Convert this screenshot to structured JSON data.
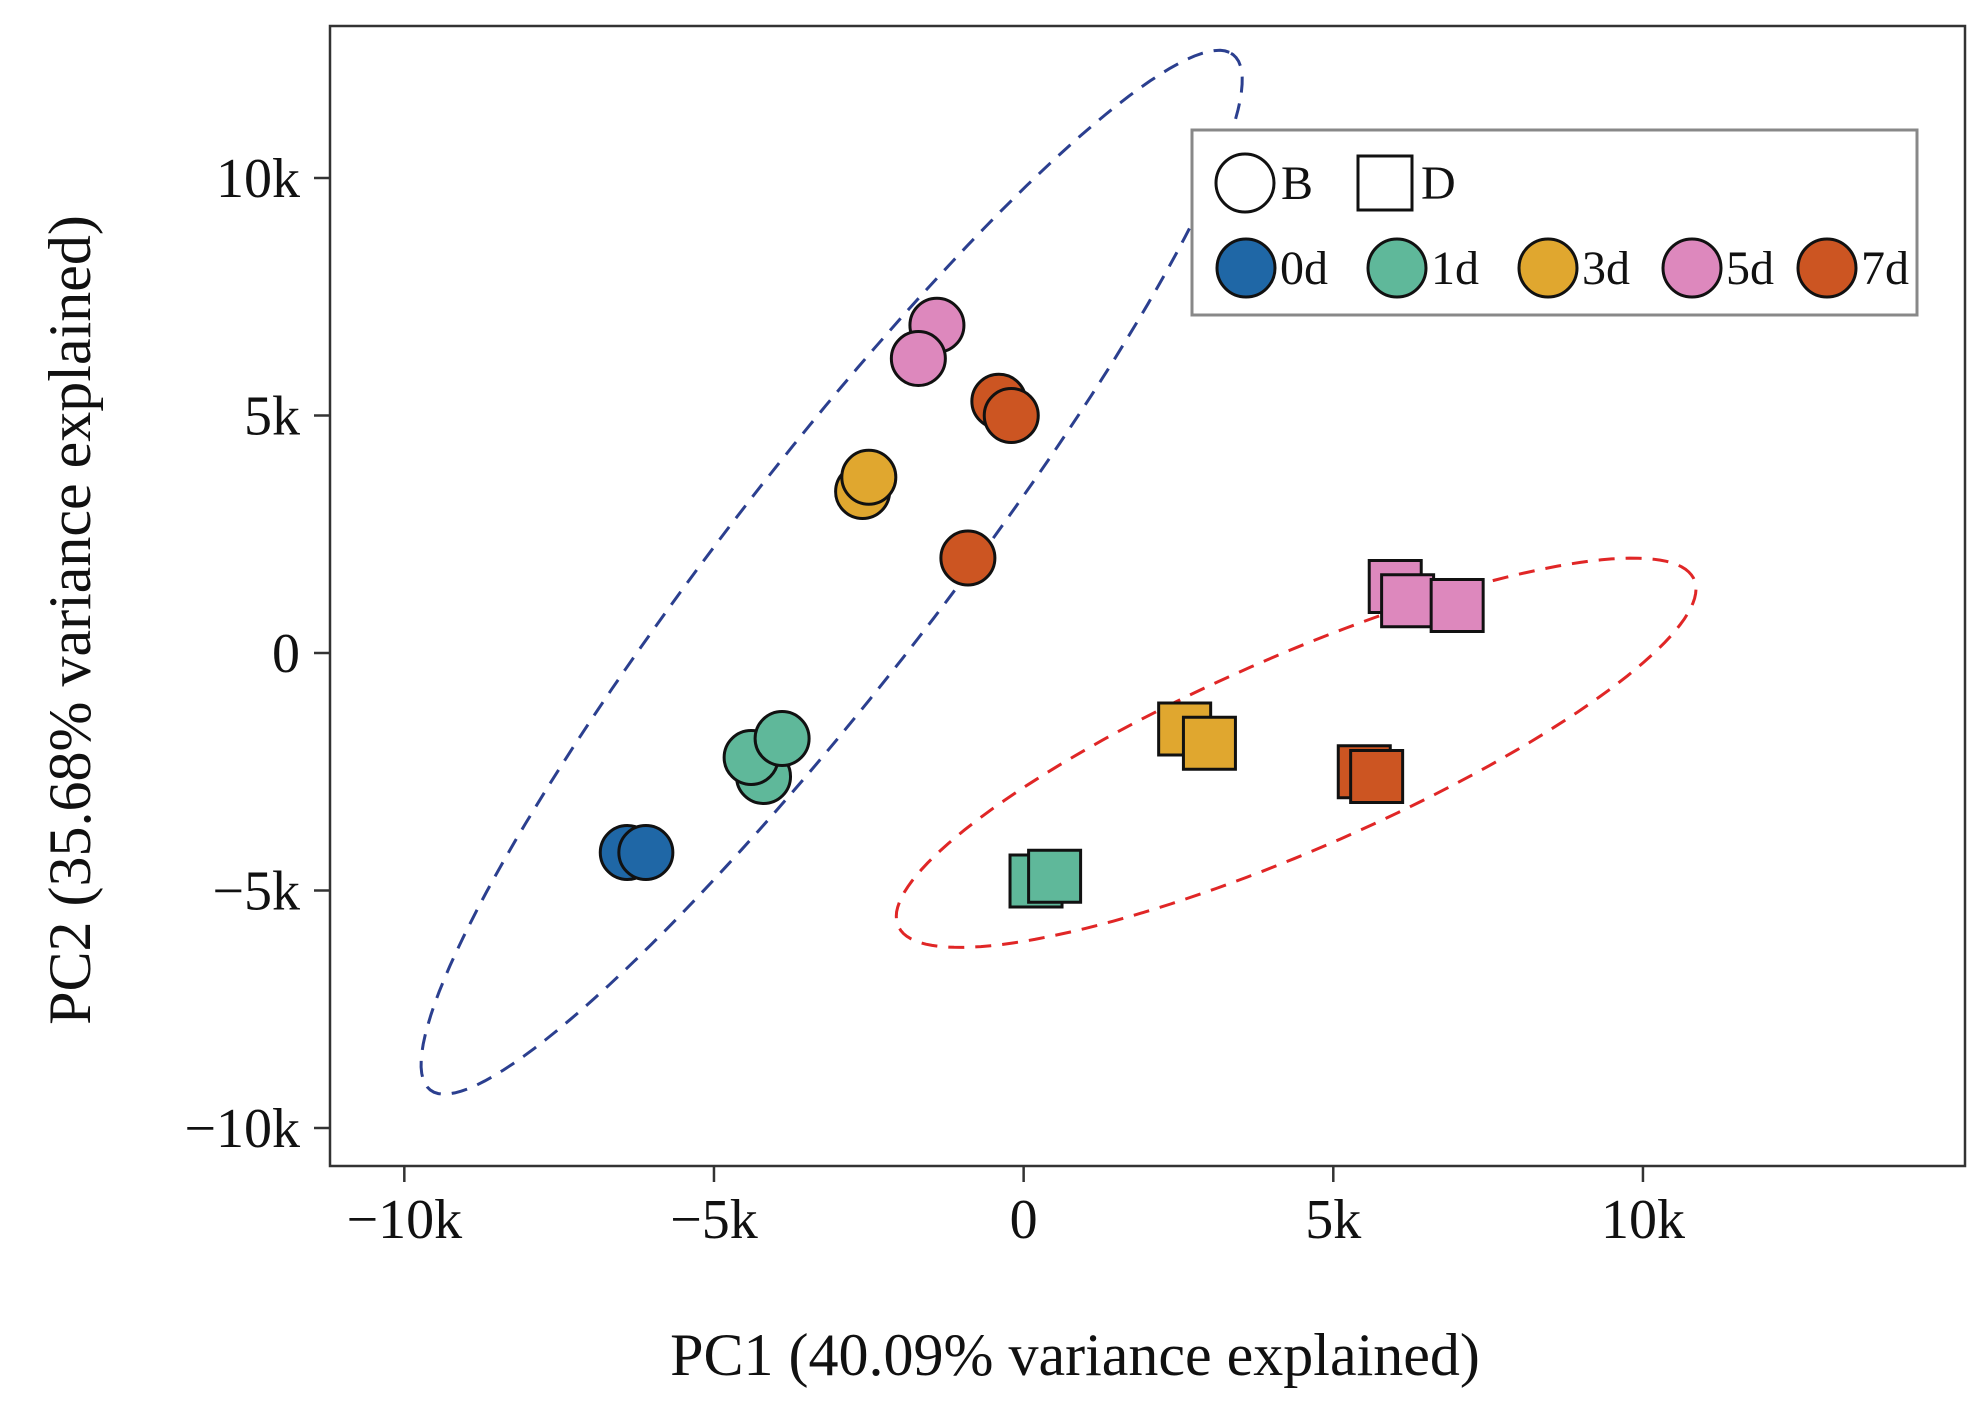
{
  "chart_data": {
    "type": "scatter",
    "xlabel": "PC1 (40.09% variance explained)",
    "ylabel": "PC2 (35.68% variance explained)",
    "xlim": [
      -11200,
      15200
    ],
    "ylim": [
      -10800,
      13200
    ],
    "x_ticks": [
      -10000,
      -5000,
      0,
      5000,
      10000
    ],
    "x_tick_labels": [
      "−10k",
      "−5k",
      "0",
      "5k",
      "10k"
    ],
    "y_ticks": [
      -10000,
      -5000,
      0,
      5000,
      10000
    ],
    "y_tick_labels": [
      "−10k",
      "−5k",
      "0",
      "5k",
      "10k"
    ],
    "grid": false,
    "legend_placement": "top-right",
    "legend": {
      "shapes": [
        {
          "label": "B",
          "shape": "circle"
        },
        {
          "label": "D",
          "shape": "square"
        }
      ],
      "colors": [
        {
          "label": "0d",
          "color": "#1f67a6"
        },
        {
          "label": "1d",
          "color": "#5fb89a"
        },
        {
          "label": "3d",
          "color": "#e0a72f"
        },
        {
          "label": "5d",
          "color": "#dd88bd"
        },
        {
          "label": "7d",
          "color": "#cc5522"
        }
      ]
    },
    "series": [
      {
        "shape": "circle",
        "color": "#1f67a6",
        "points": [
          [
            -6400,
            -4200
          ],
          [
            -6100,
            -4200
          ]
        ]
      },
      {
        "shape": "circle",
        "color": "#5fb89a",
        "points": [
          [
            -4200,
            -2600
          ],
          [
            -4400,
            -2200
          ],
          [
            -3900,
            -1800
          ]
        ]
      },
      {
        "shape": "circle",
        "color": "#e0a72f",
        "points": [
          [
            -2600,
            3400
          ],
          [
            -2500,
            3700
          ]
        ]
      },
      {
        "shape": "circle",
        "color": "#dd88bd",
        "points": [
          [
            -1400,
            6900
          ],
          [
            -1700,
            6200
          ]
        ]
      },
      {
        "shape": "circle",
        "color": "#cc5522",
        "points": [
          [
            -400,
            5300
          ],
          [
            -200,
            5000
          ],
          [
            -900,
            2000
          ]
        ]
      },
      {
        "shape": "square",
        "color": "#5fb89a",
        "points": [
          [
            200,
            -4800
          ],
          [
            500,
            -4700
          ]
        ]
      },
      {
        "shape": "square",
        "color": "#e0a72f",
        "points": [
          [
            2600,
            -1600
          ],
          [
            3000,
            -1900
          ]
        ]
      },
      {
        "shape": "square",
        "color": "#dd88bd",
        "points": [
          [
            6000,
            1400
          ],
          [
            6200,
            1100
          ],
          [
            7000,
            1000
          ]
        ]
      },
      {
        "shape": "square",
        "color": "#cc5522",
        "points": [
          [
            5500,
            -2500
          ],
          [
            5700,
            -2600
          ]
        ]
      }
    ],
    "ellipses": [
      {
        "color": "#2b3f8f",
        "center": [
          -3100,
          1700
        ],
        "semi_major": 12690,
        "semi_minor": 1910,
        "angle_deg": 59.6
      },
      {
        "color": "#e02626",
        "center": [
          4400,
          -2100
        ],
        "semi_major": 7400,
        "semi_minor": 1930,
        "angle_deg": 30.4
      }
    ]
  }
}
